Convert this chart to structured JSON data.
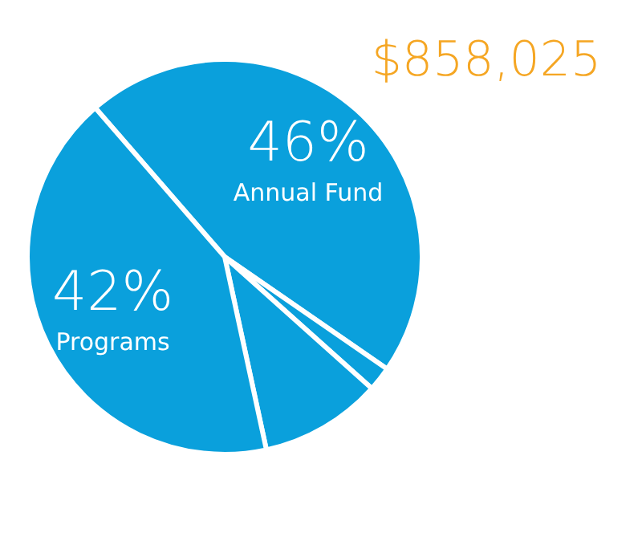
{
  "chart_data": {
    "type": "pie",
    "title": "$858,025",
    "categories": [
      "Annual Fund",
      null,
      null,
      "Programs"
    ],
    "values": [
      46,
      2,
      10,
      42
    ],
    "value_labels": [
      "46%",
      null,
      null,
      "42%"
    ],
    "colors": [
      "#0aa0dc",
      "#0aa0dc",
      "#0aa0dc",
      "#0aa0dc"
    ]
  }
}
